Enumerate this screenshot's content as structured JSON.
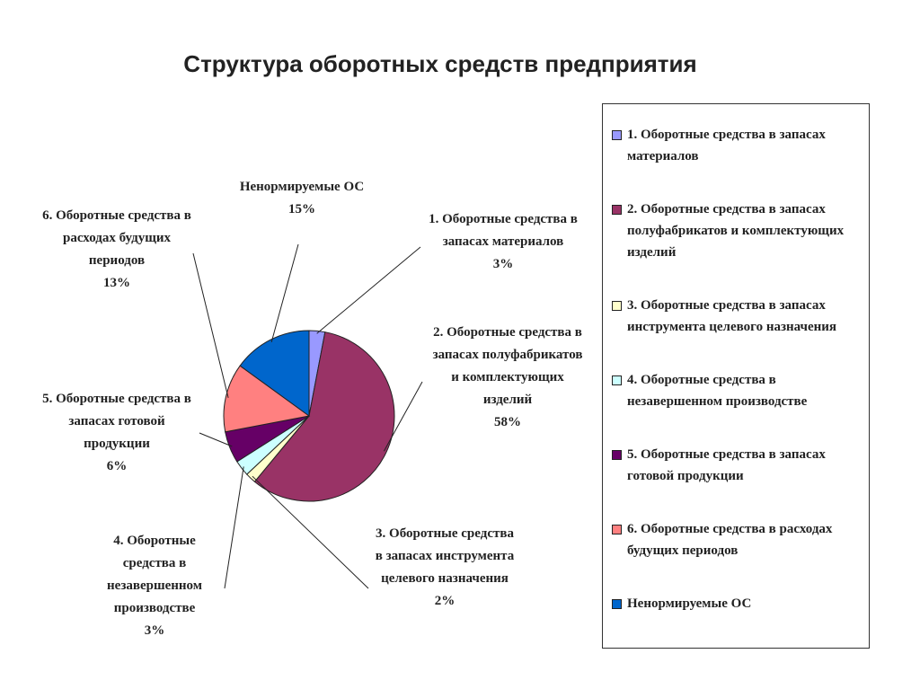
{
  "chart_data": {
    "type": "pie",
    "title": "Структура оборотных средств предприятия",
    "categories": [
      "1. Оборотные средства в запасах материалов",
      "2. Оборотные средства в запасах полуфабрикатов и комплектующих изделий",
      "3. Оборотные средства в запасах инструмента целевого назначения",
      "4. Оборотные средства в незавершенном производстве",
      "5. Оборотные средства в запасах готовой продукции",
      "6. Оборотные средства в расходах будущих периодов",
      "Ненормируемые ОС"
    ],
    "values": [
      3,
      58,
      2,
      3,
      6,
      13,
      15
    ],
    "value_labels": [
      "3%",
      "58%",
      "2%",
      "3%",
      "6%",
      "13%",
      "15%"
    ],
    "colors": [
      "#9999ff",
      "#993366",
      "#ffffcc",
      "#ccffff",
      "#660066",
      "#ff8080",
      "#0066cc"
    ],
    "legend": "right"
  }
}
